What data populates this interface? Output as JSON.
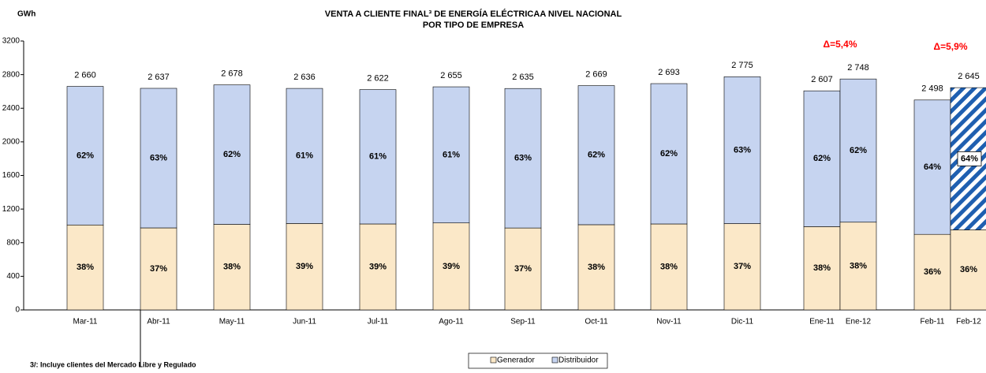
{
  "chart_data": {
    "type": "stacked_bar",
    "title": "VENTA A CLIENTE FINAL³ DE ENERGÍA ELÉCTRICAA NIVEL NACIONAL",
    "subtitle": "POR TIPO DE EMPRESA",
    "y_label": "GWh",
    "footnote": "3/: Incluye clientes del Mercado Libre y Regulado",
    "annotations": [
      {
        "text": "Δ=5,4%",
        "color": "#ff0000"
      },
      {
        "text": "Δ=5,9%",
        "color": "#ff0000"
      }
    ],
    "categories": [
      "Mar-11",
      "Abr-11",
      "May-11",
      "Jun-11",
      "Jul-11",
      "Ago-11",
      "Sep-11",
      "Oct-11",
      "Nov-11",
      "Dic-11",
      "Ene-11",
      "Ene-12",
      "Feb-11",
      "Feb-12"
    ],
    "totals": [
      {
        "value": 2660,
        "label": "2 660"
      },
      {
        "value": 2637,
        "label": "2 637"
      },
      {
        "value": 2678,
        "label": "2 678"
      },
      {
        "value": 2636,
        "label": "2 636"
      },
      {
        "value": 2622,
        "label": "2 622"
      },
      {
        "value": 2655,
        "label": "2 655"
      },
      {
        "value": 2635,
        "label": "2 635"
      },
      {
        "value": 2669,
        "label": "2 669"
      },
      {
        "value": 2693,
        "label": "2 693"
      },
      {
        "value": 2775,
        "label": "2 775"
      },
      {
        "value": 2607,
        "label": "2 607"
      },
      {
        "value": 2748,
        "label": "2 748"
      },
      {
        "value": 2498,
        "label": "2 498"
      },
      {
        "value": 2645,
        "label": "2 645"
      }
    ],
    "series": [
      {
        "name": "Generador",
        "color": "#fbe8c8",
        "values": [
          1011,
          976,
          1018,
          1028,
          1023,
          1035,
          975,
          1014,
          1023,
          1027,
          991,
          1044,
          899,
          952
        ],
        "share_labels": [
          "38%",
          "37%",
          "38%",
          "39%",
          "39%",
          "39%",
          "37%",
          "38%",
          "38%",
          "37%",
          "38%",
          "38%",
          "36%",
          "36%"
        ]
      },
      {
        "name": "Distribuidor",
        "color": "#c6d4f0",
        "values": [
          1649,
          1661,
          1660,
          1608,
          1599,
          1620,
          1660,
          1655,
          1670,
          1748,
          1616,
          1704,
          1599,
          1693
        ],
        "share_labels": [
          "62%",
          "63%",
          "62%",
          "61%",
          "61%",
          "61%",
          "63%",
          "62%",
          "62%",
          "63%",
          "62%",
          "62%",
          "64%",
          "64%"
        ],
        "styles": [
          "solid",
          "solid",
          "solid",
          "solid",
          "solid",
          "solid",
          "solid",
          "solid",
          "solid",
          "solid",
          "solid",
          "solid",
          "solid",
          "hatch"
        ]
      }
    ],
    "ylim": [
      0,
      3200
    ],
    "yticks": [
      0,
      400,
      800,
      1200,
      1600,
      2000,
      2400,
      2800,
      3200
    ]
  }
}
